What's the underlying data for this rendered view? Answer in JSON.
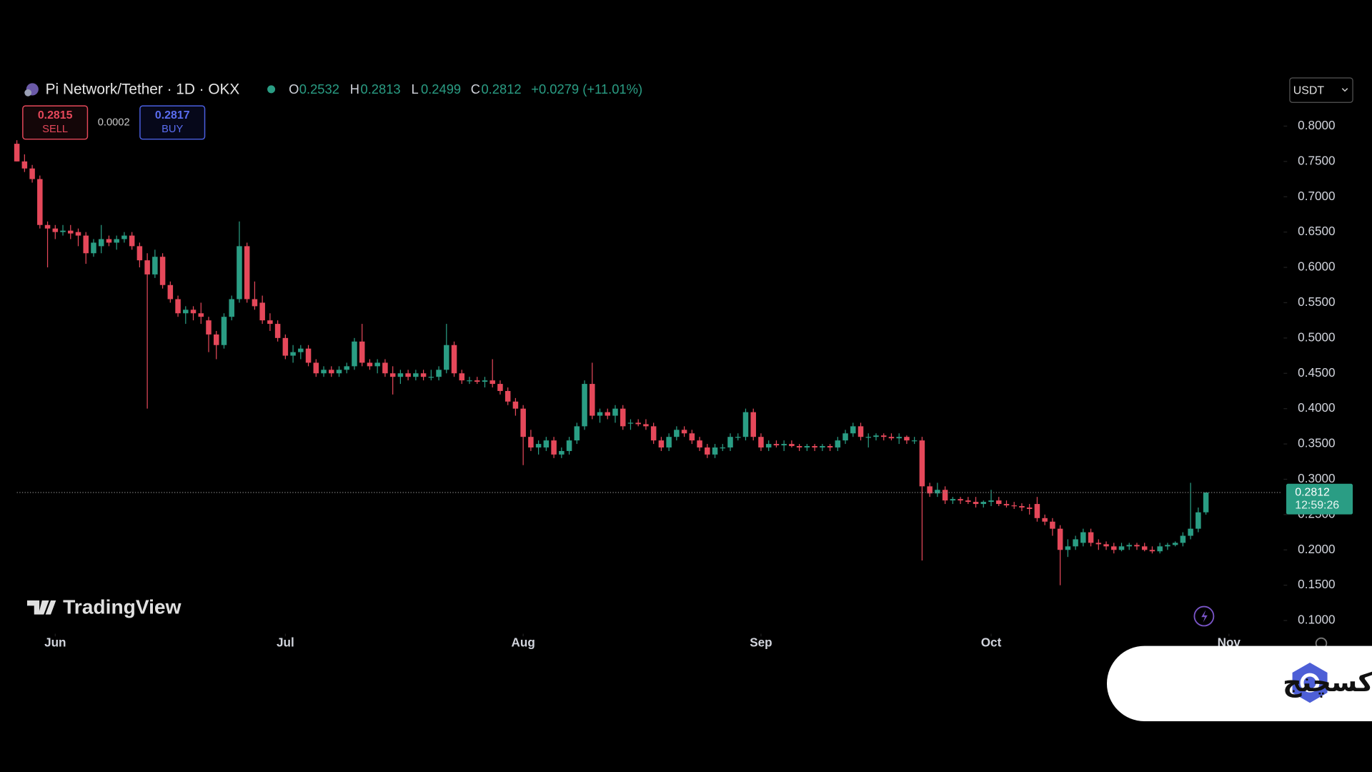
{
  "chart_data": {
    "type": "candlestick",
    "title": "Pi Network/Tether · 1D · OKX",
    "ohlc_labels": [
      "O",
      "H",
      "L",
      "C"
    ],
    "change": "+0.0279 (+11.01%)",
    "sell": 0.2815,
    "sell_label": "SELL",
    "spread": 0.0002,
    "buy": 0.2817,
    "buy_label": "BUY",
    "currency": "USDT",
    "countdown": "12:59:26",
    "watermark": "TradingView",
    "badge_text": "اوکی اکسچنج",
    "up_color": "#2a9d84",
    "down_color": "#e5485a",
    "grid": false,
    "open": [
      0.775,
      0.75,
      0.74,
      0.725,
      0.66,
      0.655,
      0.65,
      0.652,
      0.65,
      0.645,
      0.62,
      0.63,
      0.64,
      0.635,
      0.64,
      0.645,
      0.63,
      0.61,
      0.59,
      0.615,
      0.575,
      0.555,
      0.535,
      0.54,
      0.535,
      0.525,
      0.505,
      0.49,
      0.53,
      0.555,
      0.63,
      0.555,
      0.55,
      0.525,
      0.52,
      0.5,
      0.475,
      0.48,
      0.485,
      0.465,
      0.45,
      0.455,
      0.45,
      0.455,
      0.46,
      0.495,
      0.465,
      0.46,
      0.465,
      0.45,
      0.445,
      0.45,
      0.445,
      0.45,
      0.445,
      0.445,
      0.455,
      0.49,
      0.45,
      0.44,
      0.44,
      0.438,
      0.44,
      0.435,
      0.425,
      0.41,
      0.4,
      0.36,
      0.345,
      0.345,
      0.355,
      0.335,
      0.34,
      0.355,
      0.375,
      0.435,
      0.39,
      0.395,
      0.39,
      0.4,
      0.38,
      0.38,
      0.378,
      0.375,
      0.355,
      0.345,
      0.36,
      0.37,
      0.365,
      0.355,
      0.345,
      0.335,
      0.345,
      0.345,
      0.36,
      0.36,
      0.395,
      0.36,
      0.345,
      0.35,
      0.348,
      0.35,
      0.347,
      0.345,
      0.347,
      0.345,
      0.347,
      0.345,
      0.355,
      0.365,
      0.375,
      0.36,
      0.36,
      0.362,
      0.36,
      0.358,
      0.36,
      0.355,
      0.355,
      0.29,
      0.28,
      0.285,
      0.27,
      0.272,
      0.27,
      0.268,
      0.265,
      0.268,
      0.27,
      0.265,
      0.263,
      0.262,
      0.26,
      0.265,
      0.245,
      0.24,
      0.23,
      0.2,
      0.205,
      0.21,
      0.225,
      0.21,
      0.208,
      0.205,
      0.2,
      0.205,
      0.207,
      0.205,
      0.2,
      0.198,
      0.205,
      0.207,
      0.21,
      0.22,
      0.23,
      0.2532
    ],
    "high": [
      0.78,
      0.76,
      0.745,
      0.73,
      0.665,
      0.66,
      0.66,
      0.66,
      0.655,
      0.65,
      0.64,
      0.66,
      0.645,
      0.645,
      0.65,
      0.65,
      0.635,
      0.62,
      0.625,
      0.62,
      0.58,
      0.56,
      0.545,
      0.545,
      0.55,
      0.53,
      0.51,
      0.535,
      0.56,
      0.665,
      0.635,
      0.58,
      0.56,
      0.535,
      0.525,
      0.505,
      0.49,
      0.49,
      0.49,
      0.47,
      0.46,
      0.46,
      0.46,
      0.465,
      0.5,
      0.52,
      0.47,
      0.47,
      0.47,
      0.46,
      0.455,
      0.455,
      0.455,
      0.455,
      0.455,
      0.46,
      0.52,
      0.495,
      0.455,
      0.445,
      0.445,
      0.445,
      0.47,
      0.44,
      0.43,
      0.415,
      0.405,
      0.37,
      0.355,
      0.36,
      0.36,
      0.345,
      0.36,
      0.38,
      0.44,
      0.465,
      0.4,
      0.4,
      0.405,
      0.405,
      0.385,
      0.385,
      0.385,
      0.38,
      0.36,
      0.365,
      0.375,
      0.375,
      0.37,
      0.36,
      0.35,
      0.35,
      0.35,
      0.365,
      0.365,
      0.4,
      0.4,
      0.365,
      0.355,
      0.355,
      0.355,
      0.355,
      0.35,
      0.35,
      0.35,
      0.35,
      0.35,
      0.36,
      0.37,
      0.38,
      0.38,
      0.365,
      0.365,
      0.365,
      0.365,
      0.365,
      0.362,
      0.36,
      0.36,
      0.295,
      0.295,
      0.29,
      0.275,
      0.275,
      0.275,
      0.275,
      0.27,
      0.285,
      0.275,
      0.27,
      0.268,
      0.266,
      0.265,
      0.275,
      0.25,
      0.245,
      0.235,
      0.215,
      0.22,
      0.23,
      0.23,
      0.215,
      0.212,
      0.21,
      0.21,
      0.21,
      0.21,
      0.21,
      0.205,
      0.21,
      0.21,
      0.212,
      0.225,
      0.295,
      0.26,
      0.2813
    ],
    "low": [
      0.75,
      0.735,
      0.72,
      0.655,
      0.6,
      0.64,
      0.645,
      0.64,
      0.63,
      0.605,
      0.615,
      0.62,
      0.63,
      0.625,
      0.635,
      0.625,
      0.6,
      0.4,
      0.585,
      0.57,
      0.55,
      0.53,
      0.52,
      0.525,
      0.52,
      0.48,
      0.47,
      0.485,
      0.525,
      0.55,
      0.55,
      0.54,
      0.52,
      0.51,
      0.495,
      0.47,
      0.465,
      0.47,
      0.46,
      0.445,
      0.445,
      0.445,
      0.445,
      0.45,
      0.455,
      0.46,
      0.455,
      0.45,
      0.445,
      0.42,
      0.435,
      0.44,
      0.44,
      0.44,
      0.44,
      0.44,
      0.45,
      0.445,
      0.435,
      0.435,
      0.435,
      0.43,
      0.43,
      0.42,
      0.405,
      0.39,
      0.32,
      0.34,
      0.335,
      0.34,
      0.33,
      0.33,
      0.335,
      0.35,
      0.37,
      0.385,
      0.38,
      0.385,
      0.38,
      0.37,
      0.37,
      0.375,
      0.37,
      0.35,
      0.34,
      0.34,
      0.355,
      0.36,
      0.35,
      0.34,
      0.33,
      0.33,
      0.34,
      0.34,
      0.355,
      0.355,
      0.355,
      0.34,
      0.34,
      0.345,
      0.34,
      0.345,
      0.34,
      0.34,
      0.34,
      0.34,
      0.34,
      0.34,
      0.35,
      0.36,
      0.355,
      0.345,
      0.355,
      0.355,
      0.355,
      0.35,
      0.35,
      0.35,
      0.185,
      0.275,
      0.275,
      0.265,
      0.265,
      0.265,
      0.265,
      0.26,
      0.26,
      0.262,
      0.262,
      0.26,
      0.258,
      0.255,
      0.25,
      0.24,
      0.235,
      0.22,
      0.15,
      0.19,
      0.2,
      0.205,
      0.205,
      0.2,
      0.2,
      0.195,
      0.198,
      0.2,
      0.2,
      0.198,
      0.195,
      0.195,
      0.2,
      0.205,
      0.205,
      0.215,
      0.225,
      0.2499
    ],
    "close": [
      0.75,
      0.74,
      0.725,
      0.66,
      0.655,
      0.65,
      0.652,
      0.648,
      0.645,
      0.62,
      0.635,
      0.64,
      0.635,
      0.64,
      0.645,
      0.63,
      0.61,
      0.59,
      0.615,
      0.575,
      0.555,
      0.535,
      0.54,
      0.535,
      0.53,
      0.505,
      0.49,
      0.53,
      0.555,
      0.63,
      0.555,
      0.545,
      0.525,
      0.52,
      0.5,
      0.475,
      0.48,
      0.485,
      0.465,
      0.45,
      0.455,
      0.45,
      0.455,
      0.46,
      0.495,
      0.465,
      0.46,
      0.465,
      0.45,
      0.445,
      0.45,
      0.445,
      0.45,
      0.445,
      0.445,
      0.455,
      0.49,
      0.45,
      0.44,
      0.44,
      0.438,
      0.44,
      0.435,
      0.425,
      0.41,
      0.4,
      0.36,
      0.345,
      0.35,
      0.355,
      0.335,
      0.34,
      0.355,
      0.375,
      0.435,
      0.39,
      0.395,
      0.39,
      0.4,
      0.375,
      0.38,
      0.378,
      0.375,
      0.355,
      0.345,
      0.36,
      0.37,
      0.365,
      0.355,
      0.345,
      0.335,
      0.345,
      0.345,
      0.36,
      0.36,
      0.395,
      0.36,
      0.345,
      0.35,
      0.348,
      0.35,
      0.347,
      0.345,
      0.347,
      0.345,
      0.347,
      0.345,
      0.355,
      0.365,
      0.375,
      0.36,
      0.36,
      0.362,
      0.36,
      0.358,
      0.36,
      0.355,
      0.355,
      0.29,
      0.28,
      0.285,
      0.27,
      0.272,
      0.27,
      0.268,
      0.265,
      0.268,
      0.27,
      0.265,
      0.263,
      0.262,
      0.26,
      0.258,
      0.245,
      0.24,
      0.23,
      0.2,
      0.205,
      0.215,
      0.225,
      0.21,
      0.208,
      0.205,
      0.2,
      0.205,
      0.207,
      0.205,
      0.2,
      0.198,
      0.205,
      0.207,
      0.21,
      0.22,
      0.23,
      0.2532,
      0.2812
    ],
    "xlim": [
      -2.2,
      164.9
    ],
    "xticks": [
      {
        "value": 5,
        "label": "Jun"
      },
      {
        "value": 35,
        "label": "Jul"
      },
      {
        "value": 66,
        "label": "Aug"
      },
      {
        "value": 97,
        "label": "Sep"
      },
      {
        "value": 127,
        "label": "Oct"
      },
      {
        "value": 158,
        "label": "Nov"
      }
    ],
    "ylim": [
      0.0863,
      0.867
    ],
    "yticks": [
      {
        "value": 0.1,
        "label": "0.1000"
      },
      {
        "value": 0.15,
        "label": "0.1500"
      },
      {
        "value": 0.2,
        "label": "0.2000"
      },
      {
        "value": 0.25,
        "label": "0.2500"
      },
      {
        "value": 0.3,
        "label": "0.3000"
      },
      {
        "value": 0.35,
        "label": "0.3500"
      },
      {
        "value": 0.4,
        "label": "0.4000"
      },
      {
        "value": 0.45,
        "label": "0.4500"
      },
      {
        "value": 0.5,
        "label": "0.5000"
      },
      {
        "value": 0.55,
        "label": "0.5500"
      },
      {
        "value": 0.6,
        "label": "0.6000"
      },
      {
        "value": 0.65,
        "label": "0.6500"
      },
      {
        "value": 0.7,
        "label": "0.7000"
      },
      {
        "value": 0.75,
        "label": "0.7500"
      },
      {
        "value": 0.8,
        "label": "0.8000"
      }
    ]
  }
}
